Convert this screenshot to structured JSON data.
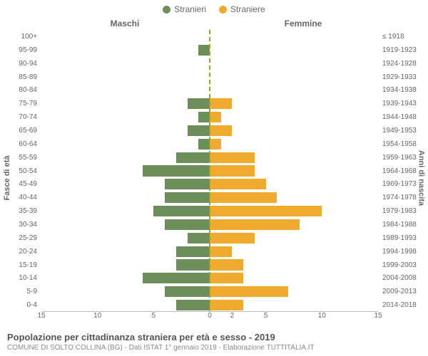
{
  "legend": {
    "male": {
      "label": "Stranieri",
      "color": "#6b8e5a"
    },
    "female": {
      "label": "Straniere",
      "color": "#f0ab2e"
    }
  },
  "side_titles": {
    "left": "Maschi",
    "right": "Femmine"
  },
  "axis_titles": {
    "left": "Fasce di età",
    "right": "Anni di nascita"
  },
  "x_axis": {
    "max": 15,
    "ticks": [
      15,
      10,
      5,
      0,
      2,
      5,
      10,
      15
    ],
    "positions": [
      -15,
      -10,
      -5,
      0,
      2,
      5,
      10,
      15
    ]
  },
  "rows": [
    {
      "age": "100+",
      "birth": "≤ 1918",
      "m": 0,
      "f": 0
    },
    {
      "age": "95-99",
      "birth": "1919-1923",
      "m": 1,
      "f": 0
    },
    {
      "age": "90-94",
      "birth": "1924-1928",
      "m": 0,
      "f": 0
    },
    {
      "age": "85-89",
      "birth": "1929-1933",
      "m": 0,
      "f": 0
    },
    {
      "age": "80-84",
      "birth": "1934-1938",
      "m": 0,
      "f": 0
    },
    {
      "age": "75-79",
      "birth": "1939-1943",
      "m": 2,
      "f": 2
    },
    {
      "age": "70-74",
      "birth": "1944-1948",
      "m": 1,
      "f": 1
    },
    {
      "age": "65-69",
      "birth": "1949-1953",
      "m": 2,
      "f": 2
    },
    {
      "age": "60-64",
      "birth": "1954-1958",
      "m": 1,
      "f": 1
    },
    {
      "age": "55-59",
      "birth": "1959-1963",
      "m": 3,
      "f": 4
    },
    {
      "age": "50-54",
      "birth": "1964-1968",
      "m": 6,
      "f": 4
    },
    {
      "age": "45-49",
      "birth": "1969-1973",
      "m": 4,
      "f": 5
    },
    {
      "age": "40-44",
      "birth": "1974-1978",
      "m": 4,
      "f": 6
    },
    {
      "age": "35-39",
      "birth": "1979-1983",
      "m": 5,
      "f": 10
    },
    {
      "age": "30-34",
      "birth": "1984-1988",
      "m": 4,
      "f": 8
    },
    {
      "age": "25-29",
      "birth": "1989-1993",
      "m": 2,
      "f": 4
    },
    {
      "age": "20-24",
      "birth": "1994-1998",
      "m": 3,
      "f": 2
    },
    {
      "age": "15-19",
      "birth": "1999-2003",
      "m": 3,
      "f": 3
    },
    {
      "age": "10-14",
      "birth": "2004-2008",
      "m": 6,
      "f": 3
    },
    {
      "age": "5-9",
      "birth": "2009-2013",
      "m": 4,
      "f": 7
    },
    {
      "age": "0-4",
      "birth": "2014-2018",
      "m": 3,
      "f": 3
    }
  ],
  "footer": {
    "title": "Popolazione per cittadinanza straniera per età e sesso - 2019",
    "subtitle": "COMUNE DI SOLTO COLLINA (BG) - Dati ISTAT 1° gennaio 2019 - Elaborazione TUTTITALIA.IT"
  },
  "style": {
    "background": "#ffffff",
    "center_line_color": "#9aa42a",
    "text_color": "#666666",
    "bar_height_pct": 80
  }
}
